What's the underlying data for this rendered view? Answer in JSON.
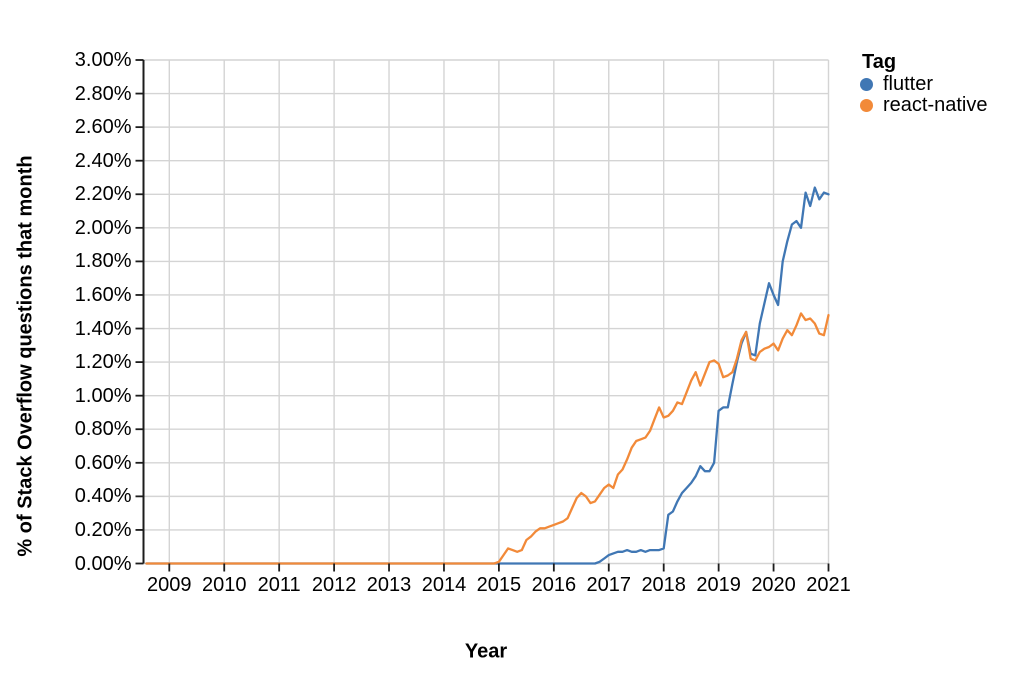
{
  "chart_data": {
    "type": "line",
    "title": "",
    "xlabel": "Year",
    "ylabel": "% of Stack Overflow questions that month",
    "legend_title": "Tag",
    "legend_position": "right",
    "grid": true,
    "ylim": [
      0,
      3
    ],
    "y_tick_step": 0.2,
    "y_tick_labels": [
      "0.00%",
      "0.20%",
      "0.40%",
      "0.60%",
      "0.80%",
      "1.00%",
      "1.20%",
      "1.40%",
      "1.60%",
      "1.80%",
      "2.00%",
      "2.20%",
      "2.40%",
      "2.60%",
      "2.80%",
      "3.00%"
    ],
    "x_tick_years": [
      2009,
      2010,
      2011,
      2012,
      2013,
      2014,
      2015,
      2016,
      2017,
      2018,
      2019,
      2020,
      2021
    ],
    "x_start": {
      "year": 2008,
      "month": 8
    },
    "x_interval": "monthly",
    "colors": {
      "grid": "#d4d4d4",
      "axis": "#1c1c1c",
      "text": "#000000"
    },
    "series": [
      {
        "name": "flutter",
        "color": "#4077b4",
        "values_by_year": {
          "2008": [
            0,
            0,
            0,
            0,
            0
          ],
          "2009": [
            0,
            0,
            0,
            0,
            0,
            0,
            0,
            0,
            0,
            0,
            0,
            0
          ],
          "2010": [
            0,
            0,
            0,
            0,
            0,
            0,
            0,
            0,
            0,
            0,
            0,
            0
          ],
          "2011": [
            0,
            0,
            0,
            0,
            0,
            0,
            0,
            0,
            0,
            0,
            0,
            0
          ],
          "2012": [
            0,
            0,
            0,
            0,
            0,
            0,
            0,
            0,
            0,
            0,
            0,
            0
          ],
          "2013": [
            0,
            0,
            0,
            0,
            0,
            0,
            0,
            0,
            0,
            0,
            0,
            0
          ],
          "2014": [
            0,
            0,
            0,
            0,
            0,
            0,
            0,
            0,
            0,
            0,
            0,
            0
          ],
          "2015": [
            0,
            0,
            0,
            0,
            0,
            0,
            0,
            0,
            0,
            0,
            0,
            0
          ],
          "2016": [
            0,
            0,
            0,
            0,
            0,
            0,
            0,
            0,
            0,
            0.0,
            0.01,
            0.03
          ],
          "2017": [
            0.05,
            0.06,
            0.07,
            0.07,
            0.08,
            0.07,
            0.07,
            0.08,
            0.07,
            0.08,
            0.08,
            0.08
          ],
          "2018": [
            0.09,
            0.29,
            0.31,
            0.37,
            0.42,
            0.45,
            0.48,
            0.52,
            0.58,
            0.55,
            0.55,
            0.6
          ],
          "2019": [
            0.91,
            0.93,
            0.93,
            1.07,
            1.2,
            1.31,
            1.38,
            1.25,
            1.24,
            1.43,
            1.55,
            1.67
          ],
          "2020": [
            1.6,
            1.54,
            1.8,
            1.92,
            2.02,
            2.04,
            2.0,
            2.21,
            2.13,
            2.24,
            2.17,
            2.21
          ],
          "2021": [
            2.2
          ]
        }
      },
      {
        "name": "react-native",
        "color": "#f28a39",
        "values_by_year": {
          "2008": [
            0,
            0,
            0,
            0,
            0
          ],
          "2009": [
            0,
            0,
            0,
            0,
            0,
            0,
            0,
            0,
            0,
            0,
            0,
            0
          ],
          "2010": [
            0,
            0,
            0,
            0,
            0,
            0,
            0,
            0,
            0,
            0,
            0,
            0
          ],
          "2011": [
            0,
            0,
            0,
            0,
            0,
            0,
            0,
            0,
            0,
            0,
            0,
            0
          ],
          "2012": [
            0,
            0,
            0,
            0,
            0,
            0,
            0,
            0,
            0,
            0,
            0,
            0
          ],
          "2013": [
            0,
            0,
            0,
            0,
            0,
            0,
            0,
            0,
            0,
            0,
            0,
            0
          ],
          "2014": [
            0,
            0,
            0,
            0,
            0,
            0,
            0,
            0,
            0,
            0,
            0,
            0
          ],
          "2015": [
            0.01,
            0.05,
            0.09,
            0.08,
            0.07,
            0.08,
            0.14,
            0.16,
            0.19,
            0.21,
            0.21,
            0.22
          ],
          "2016": [
            0.23,
            0.24,
            0.25,
            0.27,
            0.33,
            0.39,
            0.42,
            0.4,
            0.36,
            0.37,
            0.41,
            0.45
          ],
          "2017": [
            0.47,
            0.45,
            0.53,
            0.56,
            0.62,
            0.69,
            0.73,
            0.74,
            0.75,
            0.79,
            0.86,
            0.93
          ],
          "2018": [
            0.87,
            0.88,
            0.91,
            0.96,
            0.95,
            1.02,
            1.09,
            1.14,
            1.06,
            1.13,
            1.2,
            1.21
          ],
          "2019": [
            1.19,
            1.11,
            1.12,
            1.14,
            1.22,
            1.33,
            1.38,
            1.22,
            1.21,
            1.26,
            1.28,
            1.29
          ],
          "2020": [
            1.31,
            1.27,
            1.34,
            1.39,
            1.36,
            1.42,
            1.49,
            1.45,
            1.46,
            1.43,
            1.37,
            1.36
          ],
          "2021": [
            1.48
          ]
        }
      }
    ]
  }
}
